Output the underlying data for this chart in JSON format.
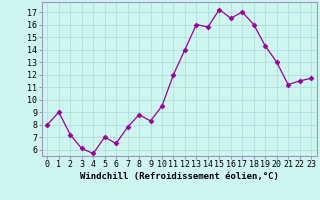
{
  "x": [
    0,
    1,
    2,
    3,
    4,
    5,
    6,
    7,
    8,
    9,
    10,
    11,
    12,
    13,
    14,
    15,
    16,
    17,
    18,
    19,
    20,
    21,
    22,
    23
  ],
  "y": [
    8,
    9,
    7.2,
    6.1,
    5.7,
    7.0,
    6.5,
    7.8,
    8.8,
    8.3,
    9.5,
    12,
    14,
    16,
    15.8,
    17.2,
    16.5,
    17,
    16,
    14.3,
    13,
    11.2,
    11.5,
    11.7
  ],
  "line_color": "#990099",
  "marker": "D",
  "marker_size": 2.5,
  "bg_color": "#cef5f0",
  "grid_color": "#aadddd",
  "xlabel": "Windchill (Refroidissement éolien,°C)",
  "ylabel_ticks": [
    6,
    7,
    8,
    9,
    10,
    11,
    12,
    13,
    14,
    15,
    16,
    17
  ],
  "xlim": [
    -0.5,
    23.5
  ],
  "ylim": [
    5.5,
    17.8
  ],
  "xlabel_fontsize": 6.5,
  "tick_fontsize": 6.0,
  "border_color": "#9999bb",
  "line_width": 0.9
}
